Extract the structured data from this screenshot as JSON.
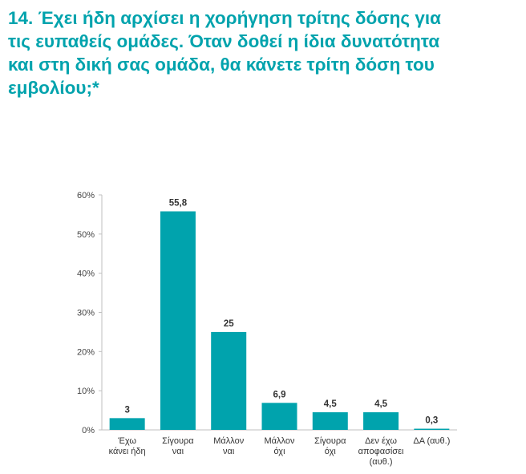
{
  "title": "14. Έχει ήδη αρχίσει η χορήγηση τρίτης δόσης για\nτις ευπαθείς ομάδες. Όταν δοθεί η ίδια δυνατότητα\nκαι στη δική σας ομάδα, θα κάνετε τρίτη δόση του\nεμβολίου;*",
  "colors": {
    "accent": "#00a3ad",
    "bar": "#00a3ad",
    "axis": "#bfbfbf"
  },
  "chart_data": {
    "type": "bar",
    "categories": [
      [
        "Έχω",
        "κάνει ήδη"
      ],
      [
        "Σίγουρα",
        "ναι"
      ],
      [
        "Μάλλον",
        "ναι"
      ],
      [
        "Μάλλον",
        "όχι"
      ],
      [
        "Σίγουρα",
        "όχι"
      ],
      [
        "Δεν έχω",
        "αποφασίσει",
        "(αυθ.)"
      ],
      [
        "ΔΑ (αυθ.)"
      ]
    ],
    "values": [
      3,
      55.8,
      25,
      6.9,
      4.5,
      4.5,
      0.3
    ],
    "value_labels": [
      "3",
      "55,8",
      "25",
      "6,9",
      "4,5",
      "4,5",
      "0,3"
    ],
    "ylim": [
      0,
      60
    ],
    "yticks": [
      0,
      10,
      20,
      30,
      40,
      50,
      60
    ],
    "ytick_labels": [
      "0%",
      "10%",
      "20%",
      "30%",
      "40%",
      "50%",
      "60%"
    ],
    "grid": false,
    "legend": "none"
  }
}
